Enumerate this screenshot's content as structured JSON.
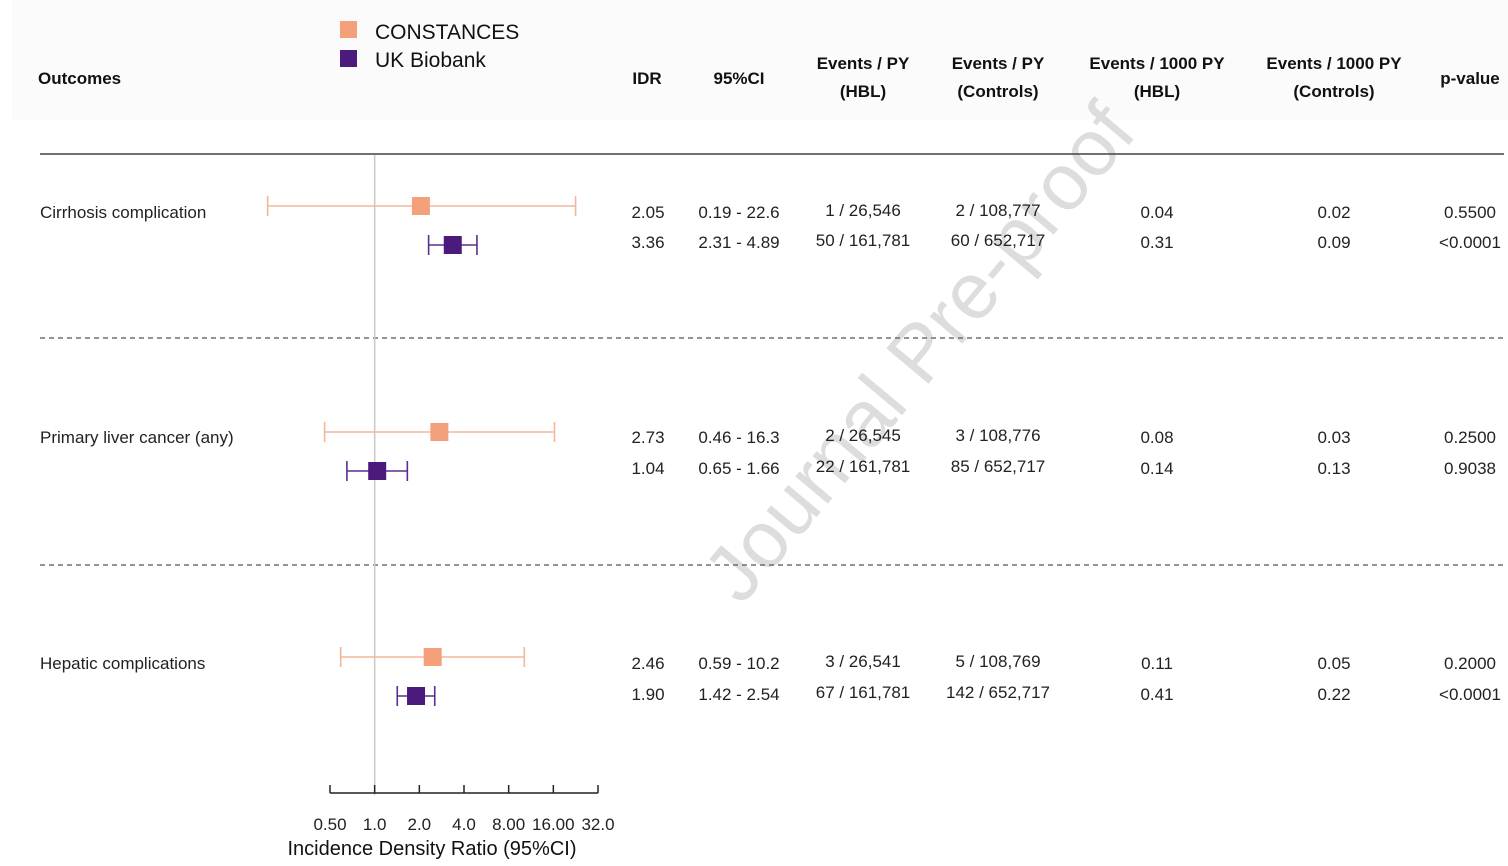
{
  "watermark": "Journal Pre-proof",
  "legend": [
    {
      "label": "CONSTANCES",
      "color": "#f4a07a"
    },
    {
      "label": "UK Biobank",
      "color": "#4b1a7c"
    }
  ],
  "headers": {
    "outcomes": "Outcomes",
    "idr": "IDR",
    "ci": "95%CI",
    "events_py_hbl": [
      "Events / PY",
      "(HBL)"
    ],
    "events_py_controls": [
      "Events / PY",
      "(Controls)"
    ],
    "events_1000_hbl": [
      "Events / 1000 PY",
      "(HBL)"
    ],
    "events_1000_controls": [
      "Events / 1000 PY",
      "(Controls)"
    ],
    "pvalue": "p-value"
  },
  "axis": {
    "title": "Incidence Density Ratio (95%CI)",
    "tick_labels": [
      "0.50",
      "1.0",
      "2.0",
      "4.0",
      "8.00",
      "16.00",
      "32.0"
    ],
    "tick_values": [
      0.5,
      1,
      2,
      4,
      8,
      16,
      32
    ],
    "scale": "log2",
    "reference_line": 1.0
  },
  "chart_data": {
    "type": "forest",
    "series": [
      {
        "name": "CONSTANCES",
        "color": "#f4a07a"
      },
      {
        "name": "UK Biobank",
        "color": "#4b1a7c"
      }
    ],
    "outcomes": [
      {
        "label": "Cirrhosis complication",
        "rows": [
          {
            "cohort": "CONSTANCES",
            "idr": 2.05,
            "ci_low": 0.19,
            "ci_high": 22.6,
            "idr_text": "2.05",
            "ci_text": "0.19 - 22.6",
            "ev_py_hbl": "1 / 26,546",
            "ev_py_ctrl": "2 / 108,777",
            "rate_hbl": "0.04",
            "rate_ctrl": "0.02",
            "p": "0.5500"
          },
          {
            "cohort": "UK Biobank",
            "idr": 3.36,
            "ci_low": 2.31,
            "ci_high": 4.89,
            "idr_text": "3.36",
            "ci_text": "2.31 - 4.89",
            "ev_py_hbl": "50 / 161,781",
            "ev_py_ctrl": "60 / 652,717",
            "rate_hbl": "0.31",
            "rate_ctrl": "0.09",
            "p": "<0.0001"
          }
        ]
      },
      {
        "label": "Primary liver cancer (any)",
        "rows": [
          {
            "cohort": "CONSTANCES",
            "idr": 2.73,
            "ci_low": 0.46,
            "ci_high": 16.3,
            "idr_text": "2.73",
            "ci_text": "0.46 - 16.3",
            "ev_py_hbl": "2 / 26,545",
            "ev_py_ctrl": "3 / 108,776",
            "rate_hbl": "0.08",
            "rate_ctrl": "0.03",
            "p": "0.2500"
          },
          {
            "cohort": "UK Biobank",
            "idr": 1.04,
            "ci_low": 0.65,
            "ci_high": 1.66,
            "idr_text": "1.04",
            "ci_text": "0.65 - 1.66",
            "ev_py_hbl": "22 / 161,781",
            "ev_py_ctrl": "85 / 652,717",
            "rate_hbl": "0.14",
            "rate_ctrl": "0.13",
            "p": "0.9038"
          }
        ]
      },
      {
        "label": "Hepatic complications",
        "rows": [
          {
            "cohort": "CONSTANCES",
            "idr": 2.46,
            "ci_low": 0.59,
            "ci_high": 10.2,
            "idr_text": "2.46",
            "ci_text": "0.59 - 10.2",
            "ev_py_hbl": "3 / 26,541",
            "ev_py_ctrl": "5 / 108,769",
            "rate_hbl": "0.11",
            "rate_ctrl": "0.05",
            "p": "0.2000"
          },
          {
            "cohort": "UK Biobank",
            "idr": 1.9,
            "ci_low": 1.42,
            "ci_high": 2.54,
            "idr_text": "1.90",
            "ci_text": "1.42 - 2.54",
            "ev_py_hbl": "67 / 161,781",
            "ev_py_ctrl": "142 / 652,717",
            "rate_hbl": "0.41",
            "rate_ctrl": "0.22",
            "p": "<0.0001"
          }
        ]
      }
    ]
  }
}
